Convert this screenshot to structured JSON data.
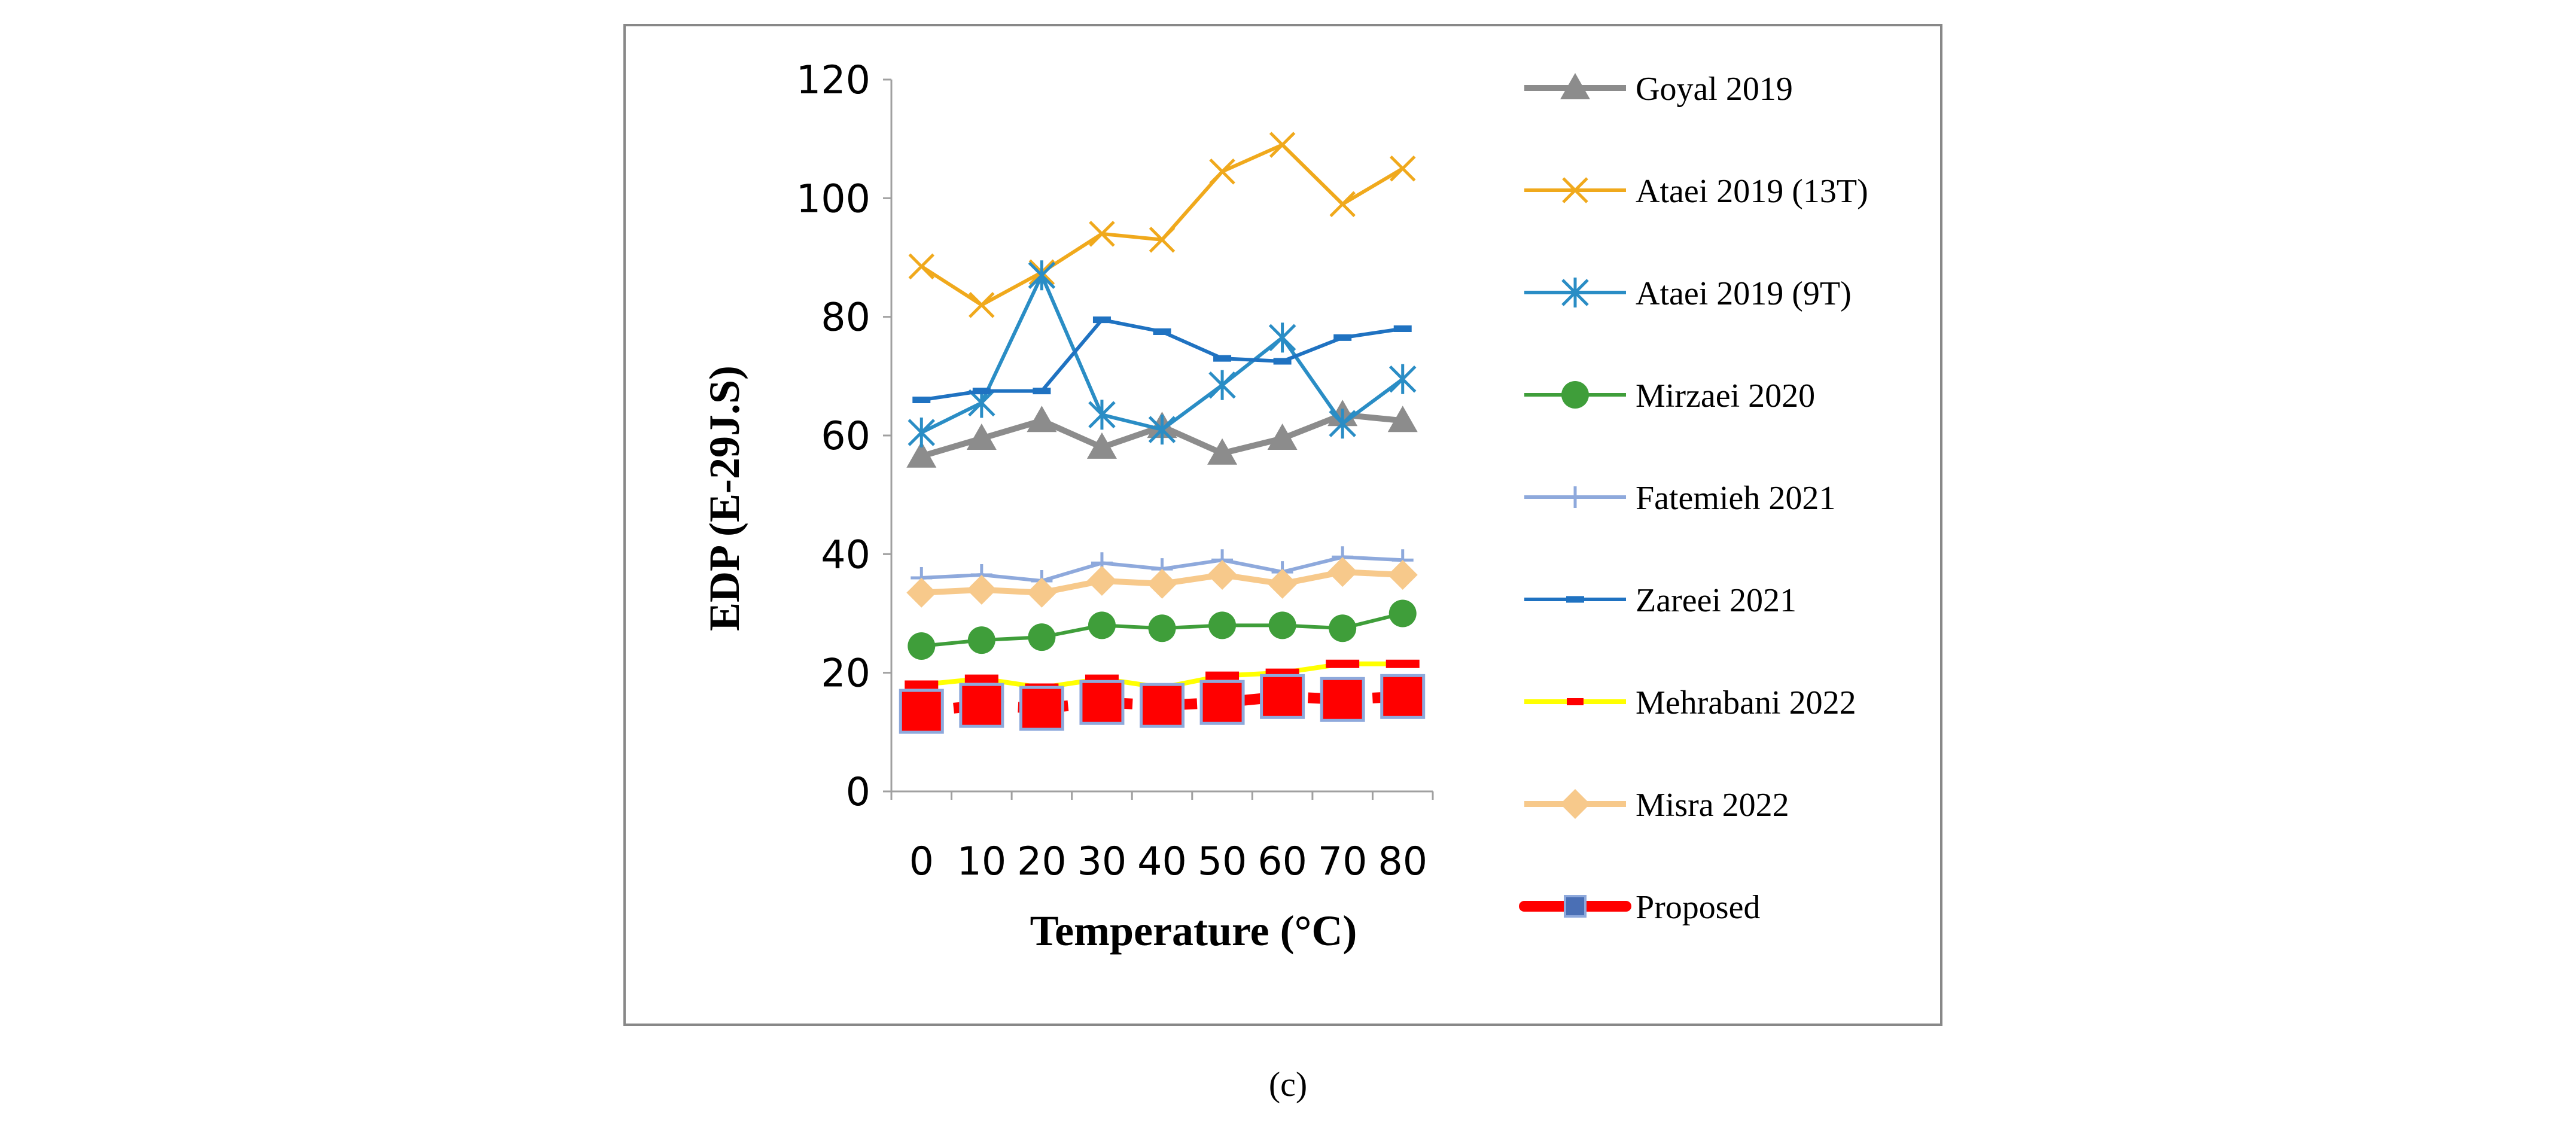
{
  "chart_data": {
    "type": "line",
    "title": "",
    "xlabel": "Temperature (°C)",
    "ylabel": "EDP (E-29J.S)",
    "ylim": [
      0,
      120
    ],
    "yticks": [
      "0",
      "20",
      "40",
      "60",
      "80",
      "100",
      "120"
    ],
    "categories": [
      "0",
      "10",
      "20",
      "30",
      "40",
      "50",
      "60",
      "70",
      "80"
    ],
    "legend_position": "right",
    "series": [
      {
        "name": "Goyal 2019",
        "color": "#8c8c8c",
        "marker": "triangle",
        "values": [
          56.5,
          59.5,
          62.5,
          58,
          61.5,
          57,
          59.5,
          63.5,
          62.5
        ]
      },
      {
        "name": "Ataei 2019 (13T)",
        "color": "#f0a91c",
        "marker": "x",
        "values": [
          88.5,
          82,
          87.5,
          94,
          93,
          104.5,
          109,
          99,
          105
        ]
      },
      {
        "name": "Ataei 2019 (9T)",
        "color": "#2a8dc5",
        "marker": "star",
        "values": [
          60.5,
          65.5,
          87,
          63.5,
          61,
          68.5,
          76.5,
          62,
          69.5
        ]
      },
      {
        "name": "Mirzaei 2020",
        "color": "#3f9e3a",
        "marker": "circle",
        "values": [
          24.5,
          25.5,
          26,
          28,
          27.5,
          28,
          28,
          27.5,
          30
        ]
      },
      {
        "name": "Fatemieh 2021",
        "color": "#8ea9dc",
        "marker": "plus",
        "values": [
          36,
          36.5,
          35.5,
          38.5,
          37.5,
          39,
          37,
          39.5,
          39
        ]
      },
      {
        "name": "Zareei 2021",
        "color": "#1f72c1",
        "marker": "dash",
        "values": [
          66,
          67.5,
          67.5,
          79.5,
          77.5,
          73,
          72.5,
          76.5,
          78
        ]
      },
      {
        "name": "Mehrabani 2022",
        "color": "#ffff00",
        "marker": "red-dash",
        "values": [
          18,
          19,
          17.5,
          19,
          17.5,
          19.5,
          20,
          21.5,
          21.5
        ]
      },
      {
        "name": "Misra 2022",
        "color": "#f7c98b",
        "marker": "diamond",
        "values": [
          33.5,
          34,
          33.5,
          35.5,
          35,
          36.5,
          35,
          37,
          36.5
        ]
      },
      {
        "name": "Proposed",
        "color": "#ff0000",
        "marker": "square",
        "values": [
          13.5,
          14.5,
          14,
          15,
          14.5,
          15,
          16,
          15.5,
          16
        ]
      }
    ]
  },
  "caption": "(c)"
}
